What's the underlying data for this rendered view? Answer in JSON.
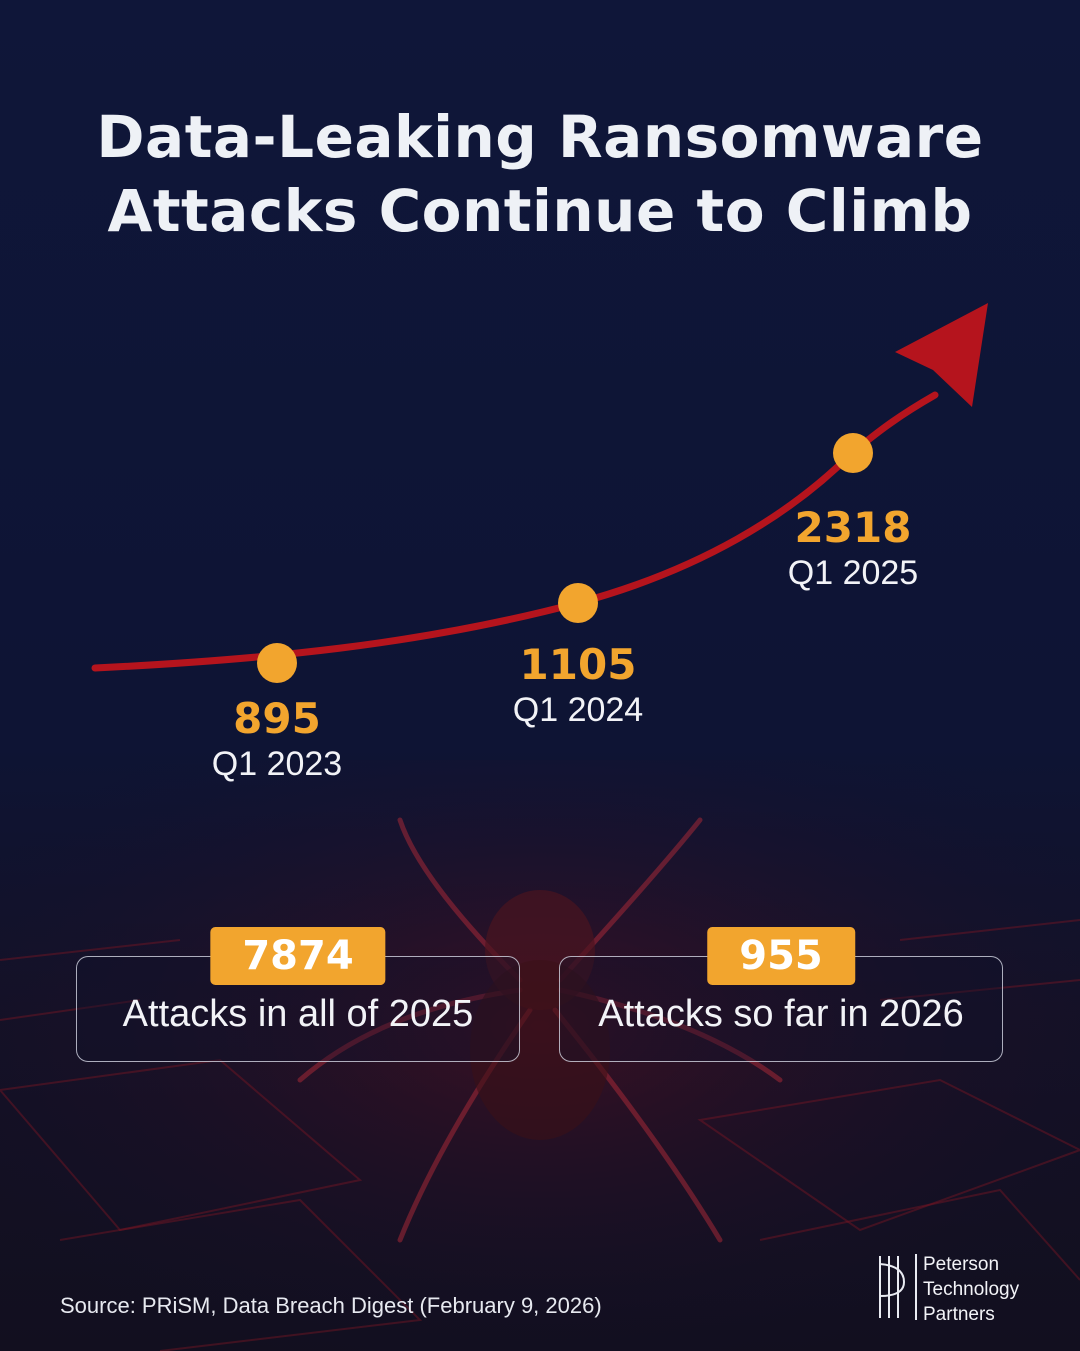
{
  "title": {
    "line1": "Data-Leaking Ransomware",
    "line2": "Attacks Continue to Climb"
  },
  "colors": {
    "background": "#0e1437",
    "accent_orange": "#f2a52e",
    "trend_red": "#b5141d",
    "text": "#eef1f6"
  },
  "chart_data": {
    "type": "line",
    "title": "Data-Leaking Ransomware Attacks Continue to Climb",
    "x": [
      "Q1 2023",
      "Q1 2024",
      "Q1 2025"
    ],
    "series": [
      {
        "values": [
          895,
          1105,
          2318
        ]
      }
    ],
    "labels": [
      "895",
      "1105",
      "2318"
    ],
    "grid": false,
    "axes_visible": false,
    "style": "upward curved arrow with orange markers"
  },
  "stats": [
    {
      "value": "7874",
      "label": "Attacks in all of 2025"
    },
    {
      "value": "955",
      "label": "Attacks so far in 2026"
    }
  ],
  "source": "Source: PRiSM, Data Breach Digest (February 9, 2026)",
  "logo": {
    "line1": "Peterson",
    "line2": "Technology",
    "line3": "Partners"
  }
}
